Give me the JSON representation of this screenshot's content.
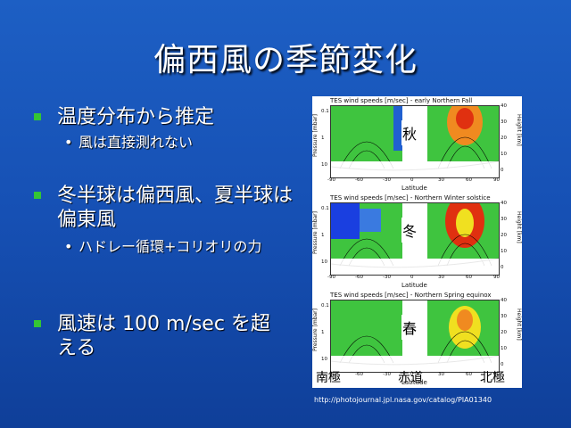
{
  "slide": {
    "title": "偏西風の季節変化",
    "bullets": {
      "temp": "温度分布から推定",
      "temp_sub": "風は直接測れない",
      "winter": "冬半球は偏西風、夏半球は偏東風",
      "winter_sub": "ハドレー循環+コリオリの力",
      "speed": "風速は 100 m/sec を超える"
    },
    "bullet_color": "#34c534"
  },
  "figure": {
    "panels": [
      {
        "title": "TES wind speeds [m/sec] - early Northern Fall",
        "season": "秋"
      },
      {
        "title": "TES wind speeds [m/sec] - Northern Winter solstice",
        "season": "冬"
      },
      {
        "title": "TES wind speeds [m/sec] - Northern Spring equinox",
        "season": "春"
      }
    ],
    "axes": {
      "xlabel": "Latitude",
      "ylabel_left": "Pressure [mbar]",
      "ylabel_right": "Height [km]",
      "xticks": [
        "-90",
        "-60",
        "-30",
        "0",
        "30",
        "60",
        "90"
      ],
      "pticks": [
        "0.1",
        "1",
        "10"
      ],
      "hticks": [
        "40",
        "30",
        "20",
        "10",
        "0"
      ]
    },
    "regions": {
      "south_pole": "南極",
      "equator": "赤道",
      "north_pole": "北極"
    },
    "colors": {
      "low": "#1a3fe0",
      "mid": "#3fc43f",
      "high": "#e03010",
      "peak": "#f0e020"
    }
  },
  "source_url": "http://photojournal.jpl.nasa.gov/catalog/PIA01340"
}
